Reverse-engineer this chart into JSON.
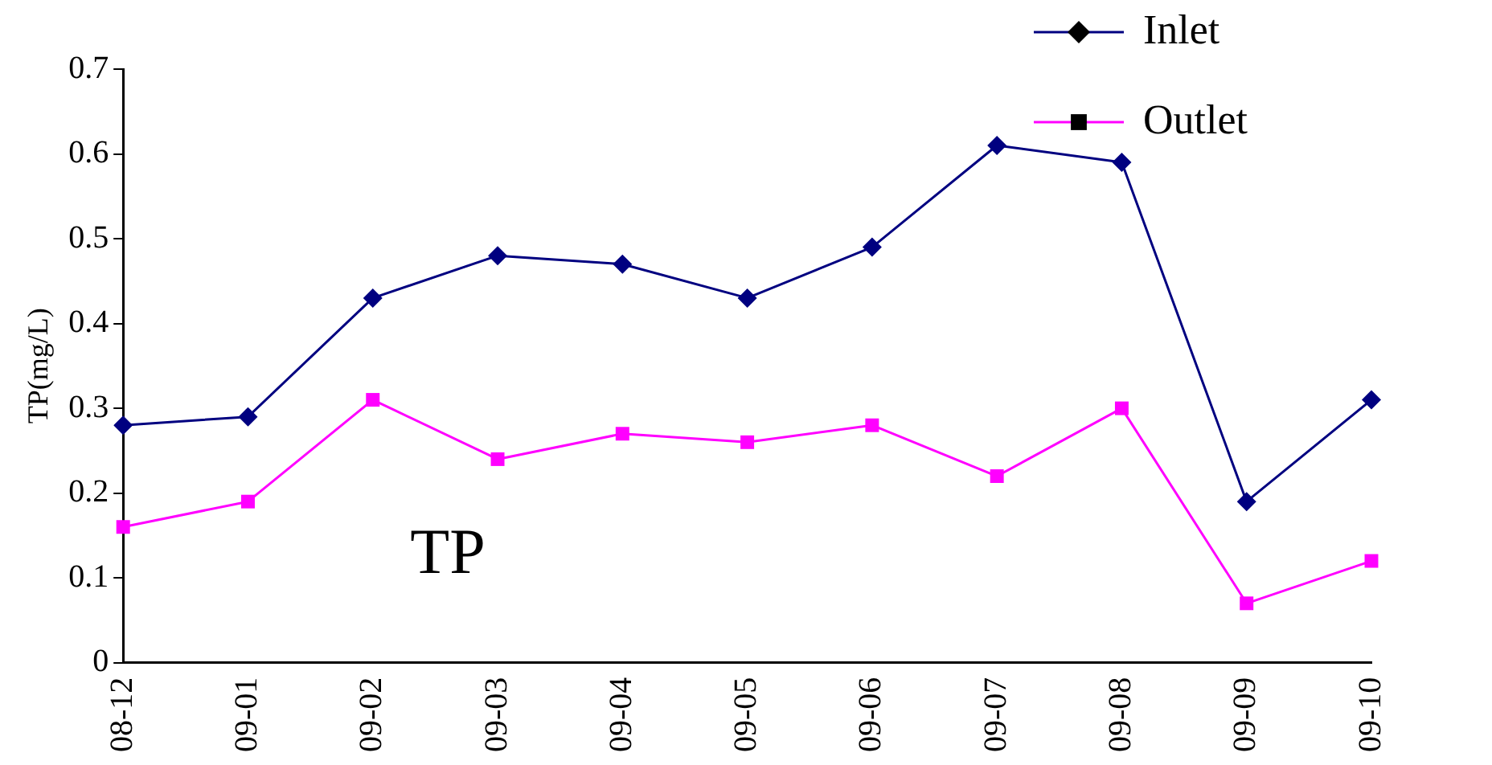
{
  "chart_data": {
    "type": "line",
    "ylabel": "TP(mg/L)",
    "categories": [
      "08-12",
      "09-01",
      "09-02",
      "09-03",
      "09-04",
      "09-05",
      "09-06",
      "09-07",
      "09-08",
      "09-09",
      "09-10"
    ],
    "series": [
      {
        "name": "Inlet",
        "color": "#000080",
        "marker": "diamond",
        "values": [
          0.28,
          0.29,
          0.43,
          0.48,
          0.47,
          0.43,
          0.49,
          0.61,
          0.59,
          0.19,
          0.31
        ]
      },
      {
        "name": "Outlet",
        "color": "#ff00ff",
        "marker": "square",
        "values": [
          0.16,
          0.19,
          0.31,
          0.24,
          0.27,
          0.26,
          0.28,
          0.22,
          0.3,
          0.07,
          0.12
        ]
      }
    ],
    "ylim": [
      0,
      0.7
    ],
    "yticks": [
      0,
      0.1,
      0.2,
      0.3,
      0.4,
      0.5,
      0.6,
      0.7
    ],
    "grid": false,
    "legend": "top right",
    "line_style": "solid",
    "annotations": [
      "TP"
    ]
  }
}
